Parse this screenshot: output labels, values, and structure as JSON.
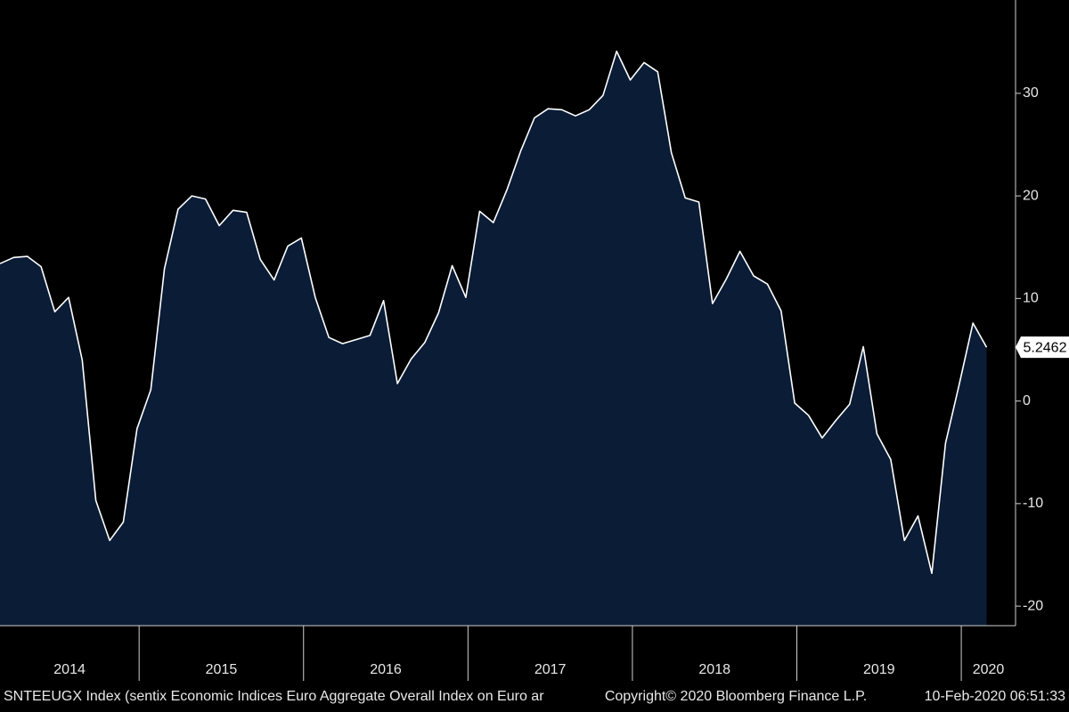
{
  "chart_data": {
    "type": "area",
    "ticker": "SNTEEUGX Index (sentix Economic Indices Euro Aggregate  Overall Index on Euro ar",
    "copyright": "Copyright© 2020 Bloomberg Finance L.P.",
    "timestamp": "10-Feb-2020 06:51:33",
    "line_color": "#ffffff",
    "fill_color": "#0a1c36",
    "x": [
      2014.154,
      2014.237,
      2014.321,
      2014.404,
      2014.487,
      2014.571,
      2014.654,
      2014.737,
      2014.821,
      2014.904,
      2014.987,
      2015.071,
      2015.154,
      2015.237,
      2015.321,
      2015.404,
      2015.487,
      2015.571,
      2015.654,
      2015.737,
      2015.821,
      2015.904,
      2015.987,
      2016.071,
      2016.154,
      2016.237,
      2016.321,
      2016.404,
      2016.487,
      2016.571,
      2016.654,
      2016.737,
      2016.821,
      2016.904,
      2016.987,
      2017.071,
      2017.154,
      2017.237,
      2017.321,
      2017.404,
      2017.487,
      2017.571,
      2017.654,
      2017.737,
      2017.821,
      2017.904,
      2017.987,
      2018.071,
      2018.154,
      2018.237,
      2018.321,
      2018.404,
      2018.487,
      2018.571,
      2018.654,
      2018.737,
      2018.821,
      2018.904,
      2018.987,
      2019.071,
      2019.154,
      2019.237,
      2019.321,
      2019.404,
      2019.487,
      2019.571,
      2019.654,
      2019.737,
      2019.821,
      2019.904,
      2019.987,
      2020.071,
      2020.154
    ],
    "values": [
      13.4,
      14.0,
      14.1,
      13.1,
      8.7,
      10.1,
      4.0,
      -9.7,
      -13.6,
      -11.8,
      -2.7,
      1.1,
      12.9,
      18.7,
      20.0,
      19.7,
      17.1,
      18.6,
      18.4,
      13.8,
      11.8,
      15.1,
      15.9,
      10.1,
      6.2,
      5.6,
      6.0,
      6.4,
      9.8,
      1.7,
      4.1,
      5.7,
      8.6,
      13.2,
      10.1,
      18.5,
      17.4,
      20.6,
      24.4,
      27.6,
      28.5,
      28.4,
      27.8,
      28.4,
      29.8,
      34.1,
      31.3,
      33.0,
      32.1,
      24.2,
      19.8,
      19.4,
      9.5,
      11.9,
      14.6,
      12.2,
      11.4,
      8.8,
      -0.2,
      -1.4,
      -3.6,
      -1.9,
      -0.3,
      5.3,
      -3.2,
      -5.7,
      -13.6,
      -11.2,
      -16.8,
      -4.1,
      1.6,
      7.6,
      5.2462
    ],
    "xlim": [
      2014.154,
      2020.33
    ],
    "xticks": [
      2014,
      2015,
      2016,
      2017,
      2018,
      2019,
      2020
    ],
    "ylim": [
      -21.9,
      39.1
    ],
    "yticks": [
      -20,
      -10,
      0,
      10,
      20,
      30
    ]
  }
}
